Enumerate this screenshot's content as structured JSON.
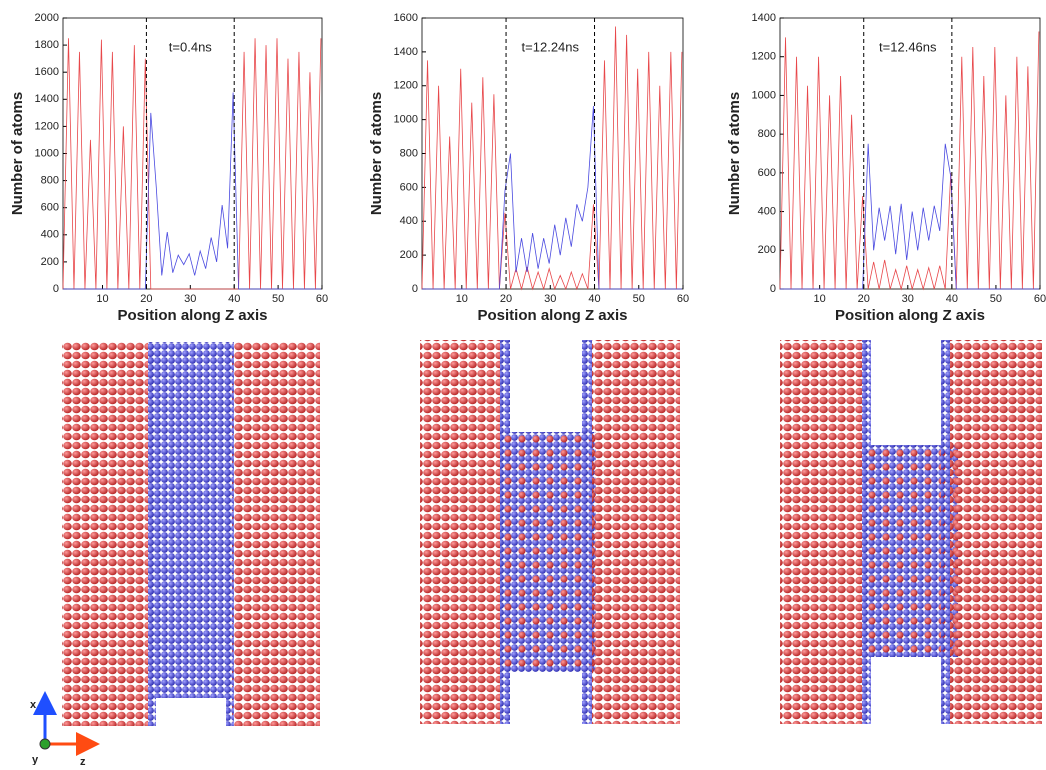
{
  "chart_data": [
    {
      "type": "line",
      "title": "t=0.4ns",
      "x_label": "Position along Z axis",
      "y_label": "Number of atoms",
      "x": [
        1,
        2.25,
        3.5,
        4.75,
        6,
        7.25,
        8.5,
        9.75,
        11,
        12.25,
        13.5,
        14.75,
        16,
        17.25,
        18.5,
        19.75,
        21,
        22.25,
        23.5,
        24.75,
        26,
        27.25,
        28.5,
        29.75,
        31,
        32.25,
        33.5,
        34.75,
        36,
        37.25,
        38.5,
        39.75,
        41,
        42.25,
        43.5,
        44.75,
        46,
        47.25,
        48.5,
        49.75,
        51,
        52.25,
        53.5,
        54.75,
        56,
        57.25,
        58.5,
        59.75
      ],
      "series": [
        {
          "color": "#e8474a",
          "values": [
            0,
            1850,
            0,
            1750,
            0,
            1100,
            0,
            1840,
            0,
            1750,
            0,
            1200,
            0,
            1800,
            0,
            1700,
            0,
            0,
            0,
            0,
            0,
            0,
            0,
            0,
            0,
            0,
            0,
            0,
            0,
            0,
            0,
            0,
            0,
            1750,
            0,
            1850,
            0,
            1800,
            0,
            1850,
            0,
            1700,
            0,
            1750,
            0,
            1600,
            0,
            1850
          ]
        },
        {
          "color": "#4a4ae0",
          "values": [
            0,
            0,
            0,
            0,
            0,
            0,
            0,
            0,
            0,
            0,
            0,
            0,
            0,
            0,
            0,
            0,
            1300,
            750,
            100,
            420,
            120,
            250,
            180,
            260,
            100,
            280,
            150,
            380,
            200,
            620,
            300,
            1450,
            0,
            0,
            0,
            0,
            0,
            0,
            0,
            0,
            0,
            0,
            0,
            0,
            0,
            0,
            0,
            0
          ]
        }
      ],
      "xlim": [
        1,
        60
      ],
      "xticks": [
        10,
        20,
        30,
        40,
        50,
        60
      ],
      "ylim": [
        0,
        2000
      ],
      "yticks": [
        0,
        200,
        400,
        600,
        800,
        1000,
        1200,
        1400,
        1600,
        1800,
        2000
      ],
      "vlines": [
        20,
        40
      ]
    },
    {
      "type": "line",
      "title": "t=12.24ns",
      "x_label": "Position along Z axis",
      "y_label": "Number of atoms",
      "x": [
        1,
        2.25,
        3.5,
        4.75,
        6,
        7.25,
        8.5,
        9.75,
        11,
        12.25,
        13.5,
        14.75,
        16,
        17.25,
        18.5,
        19.75,
        21,
        22.25,
        23.5,
        24.75,
        26,
        27.25,
        28.5,
        29.75,
        31,
        32.25,
        33.5,
        34.75,
        36,
        37.25,
        38.5,
        39.75,
        41,
        42.25,
        43.5,
        44.75,
        46,
        47.25,
        48.5,
        49.75,
        51,
        52.25,
        53.5,
        54.75,
        56,
        57.25,
        58.5,
        59.75
      ],
      "series": [
        {
          "color": "#e8474a",
          "values": [
            0,
            1350,
            0,
            1200,
            0,
            900,
            0,
            1300,
            0,
            1100,
            0,
            1250,
            0,
            1150,
            0,
            450,
            0,
            120,
            0,
            130,
            0,
            100,
            0,
            120,
            0,
            80,
            0,
            100,
            0,
            90,
            0,
            500,
            0,
            1350,
            0,
            1550,
            0,
            1500,
            0,
            1300,
            0,
            1400,
            0,
            1200,
            0,
            1400,
            0,
            1400
          ]
        },
        {
          "color": "#4a4ae0",
          "values": [
            0,
            0,
            0,
            0,
            0,
            0,
            0,
            0,
            0,
            0,
            0,
            0,
            0,
            0,
            0,
            580,
            800,
            100,
            300,
            100,
            330,
            120,
            300,
            150,
            380,
            200,
            420,
            250,
            500,
            400,
            600,
            1080,
            0,
            0,
            0,
            0,
            0,
            0,
            0,
            0,
            0,
            0,
            0,
            0,
            0,
            0,
            0,
            0
          ]
        }
      ],
      "xlim": [
        1,
        60
      ],
      "xticks": [
        10,
        20,
        30,
        40,
        50,
        60
      ],
      "ylim": [
        0,
        1600
      ],
      "yticks": [
        0,
        200,
        400,
        600,
        800,
        1000,
        1200,
        1400,
        1600
      ],
      "vlines": [
        20,
        40
      ]
    },
    {
      "type": "line",
      "title": "t=12.46ns",
      "x_label": "Position along Z axis",
      "y_label": "Number of atoms",
      "x": [
        1,
        2.25,
        3.5,
        4.75,
        6,
        7.25,
        8.5,
        9.75,
        11,
        12.25,
        13.5,
        14.75,
        16,
        17.25,
        18.5,
        19.75,
        21,
        22.25,
        23.5,
        24.75,
        26,
        27.25,
        28.5,
        29.75,
        31,
        32.25,
        33.5,
        34.75,
        36,
        37.25,
        38.5,
        39.75,
        41,
        42.25,
        43.5,
        44.75,
        46,
        47.25,
        48.5,
        49.75,
        51,
        52.25,
        53.5,
        54.75,
        56,
        57.25,
        58.5,
        59.75
      ],
      "series": [
        {
          "color": "#e8474a",
          "values": [
            0,
            1300,
            0,
            1200,
            0,
            1050,
            0,
            1200,
            0,
            1000,
            0,
            1100,
            0,
            900,
            0,
            480,
            0,
            140,
            0,
            150,
            0,
            100,
            0,
            120,
            0,
            100,
            0,
            110,
            0,
            120,
            0,
            600,
            0,
            1200,
            0,
            1250,
            0,
            1100,
            0,
            1250,
            0,
            1000,
            0,
            1200,
            0,
            1150,
            0,
            1330
          ]
        },
        {
          "color": "#4a4ae0",
          "values": [
            0,
            0,
            0,
            0,
            0,
            0,
            0,
            0,
            0,
            0,
            0,
            0,
            0,
            0,
            0,
            0,
            750,
            200,
            420,
            250,
            430,
            180,
            440,
            150,
            400,
            200,
            420,
            250,
            430,
            300,
            750,
            580,
            0,
            0,
            0,
            0,
            0,
            0,
            0,
            0,
            0,
            0,
            0,
            0,
            0,
            0,
            0,
            0
          ]
        }
      ],
      "xlim": [
        1,
        60
      ],
      "xticks": [
        10,
        20,
        30,
        40,
        50,
        60
      ],
      "ylim": [
        0,
        1400
      ],
      "yticks": [
        0,
        200,
        400,
        600,
        800,
        1000,
        1200,
        1400
      ],
      "vlines": [
        20,
        40
      ]
    }
  ],
  "axes_icon": {
    "x": "x",
    "y": "y",
    "z": "z"
  }
}
